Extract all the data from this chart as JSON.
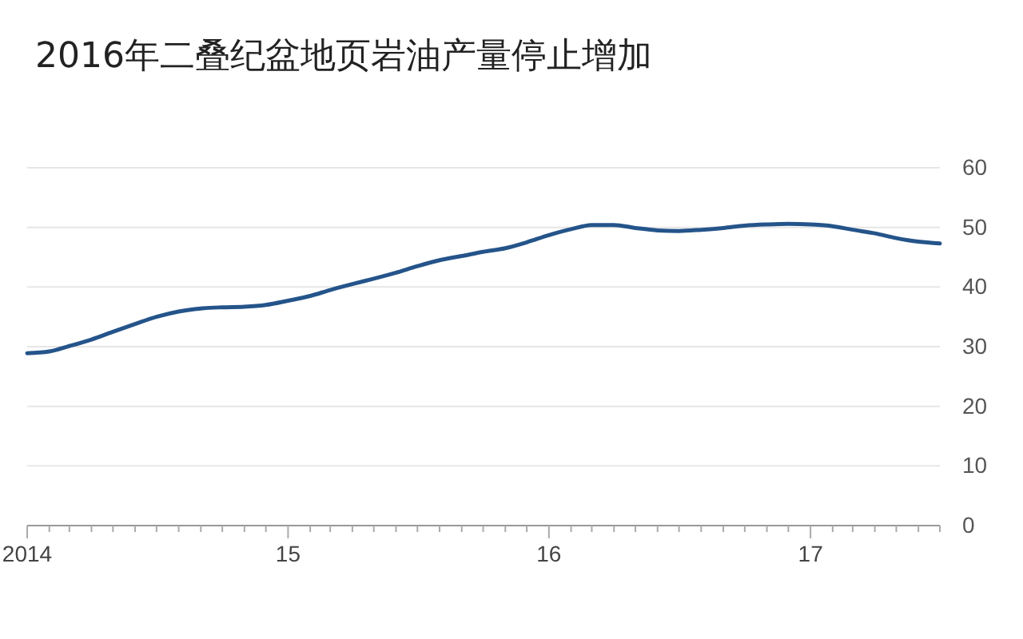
{
  "chart_data": {
    "type": "line",
    "title": "2016年二叠纪盆地页岩油产量停止增加",
    "x": [
      "2014-01",
      "2014-02",
      "2014-03",
      "2014-04",
      "2014-05",
      "2014-06",
      "2014-07",
      "2014-08",
      "2014-09",
      "2014-10",
      "2014-11",
      "2014-12",
      "2015-01",
      "2015-02",
      "2015-03",
      "2015-04",
      "2015-05",
      "2015-06",
      "2015-07",
      "2015-08",
      "2015-09",
      "2015-10",
      "2015-11",
      "2015-12",
      "2016-01",
      "2016-02",
      "2016-03",
      "2016-04",
      "2016-05",
      "2016-06",
      "2016-07",
      "2016-08",
      "2016-09",
      "2016-10",
      "2016-11",
      "2016-12",
      "2017-01",
      "2017-02",
      "2017-03",
      "2017-04",
      "2017-05",
      "2017-06",
      "2017-07"
    ],
    "series": [
      {
        "color": "#24548a",
        "values": [
          28.9,
          29.2,
          30.1,
          31.2,
          32.5,
          33.8,
          35.0,
          35.9,
          36.4,
          36.6,
          36.7,
          37.0,
          37.7,
          38.5,
          39.5,
          40.5,
          41.4,
          42.4,
          43.5,
          44.5,
          45.2,
          45.9,
          46.5,
          47.5,
          48.7,
          49.7,
          50.4,
          50.4,
          49.9,
          49.5,
          49.4,
          49.6,
          49.9,
          50.3,
          50.5,
          50.6,
          50.5,
          50.2,
          49.6,
          49.0,
          48.2,
          47.6,
          47.3
        ]
      }
    ],
    "xlim": [
      "2014-01",
      "2017-07"
    ],
    "xticks": [
      {
        "value": "2014-01",
        "label": "2014"
      },
      {
        "value": "2014-02",
        "label": null
      },
      {
        "value": "2014-03",
        "label": null
      },
      {
        "value": "2014-04",
        "label": null
      },
      {
        "value": "2014-05",
        "label": null
      },
      {
        "value": "2014-06",
        "label": null
      },
      {
        "value": "2014-07",
        "label": null
      },
      {
        "value": "2014-08",
        "label": null
      },
      {
        "value": "2014-09",
        "label": null
      },
      {
        "value": "2014-10",
        "label": null
      },
      {
        "value": "2014-11",
        "label": null
      },
      {
        "value": "2014-12",
        "label": null
      },
      {
        "value": "2015-01",
        "label": "15"
      },
      {
        "value": "2015-02",
        "label": null
      },
      {
        "value": "2015-03",
        "label": null
      },
      {
        "value": "2015-04",
        "label": null
      },
      {
        "value": "2015-05",
        "label": null
      },
      {
        "value": "2015-06",
        "label": null
      },
      {
        "value": "2015-07",
        "label": null
      },
      {
        "value": "2015-08",
        "label": null
      },
      {
        "value": "2015-09",
        "label": null
      },
      {
        "value": "2015-10",
        "label": null
      },
      {
        "value": "2015-11",
        "label": null
      },
      {
        "value": "2015-12",
        "label": null
      },
      {
        "value": "2016-01",
        "label": "16"
      },
      {
        "value": "2016-02",
        "label": null
      },
      {
        "value": "2016-03",
        "label": null
      },
      {
        "value": "2016-04",
        "label": null
      },
      {
        "value": "2016-05",
        "label": null
      },
      {
        "value": "2016-06",
        "label": null
      },
      {
        "value": "2016-07",
        "label": null
      },
      {
        "value": "2016-08",
        "label": null
      },
      {
        "value": "2016-09",
        "label": null
      },
      {
        "value": "2016-10",
        "label": null
      },
      {
        "value": "2016-11",
        "label": null
      },
      {
        "value": "2016-12",
        "label": null
      },
      {
        "value": "2017-01",
        "label": "17"
      },
      {
        "value": "2017-02",
        "label": null
      },
      {
        "value": "2017-03",
        "label": null
      },
      {
        "value": "2017-04",
        "label": null
      },
      {
        "value": "2017-05",
        "label": null
      },
      {
        "value": "2017-06",
        "label": null
      },
      {
        "value": "2017-07",
        "label": null
      }
    ],
    "ylim": [
      0,
      60
    ],
    "yticks": [
      0,
      10,
      20,
      30,
      40,
      50,
      60
    ],
    "grid": "y"
  }
}
